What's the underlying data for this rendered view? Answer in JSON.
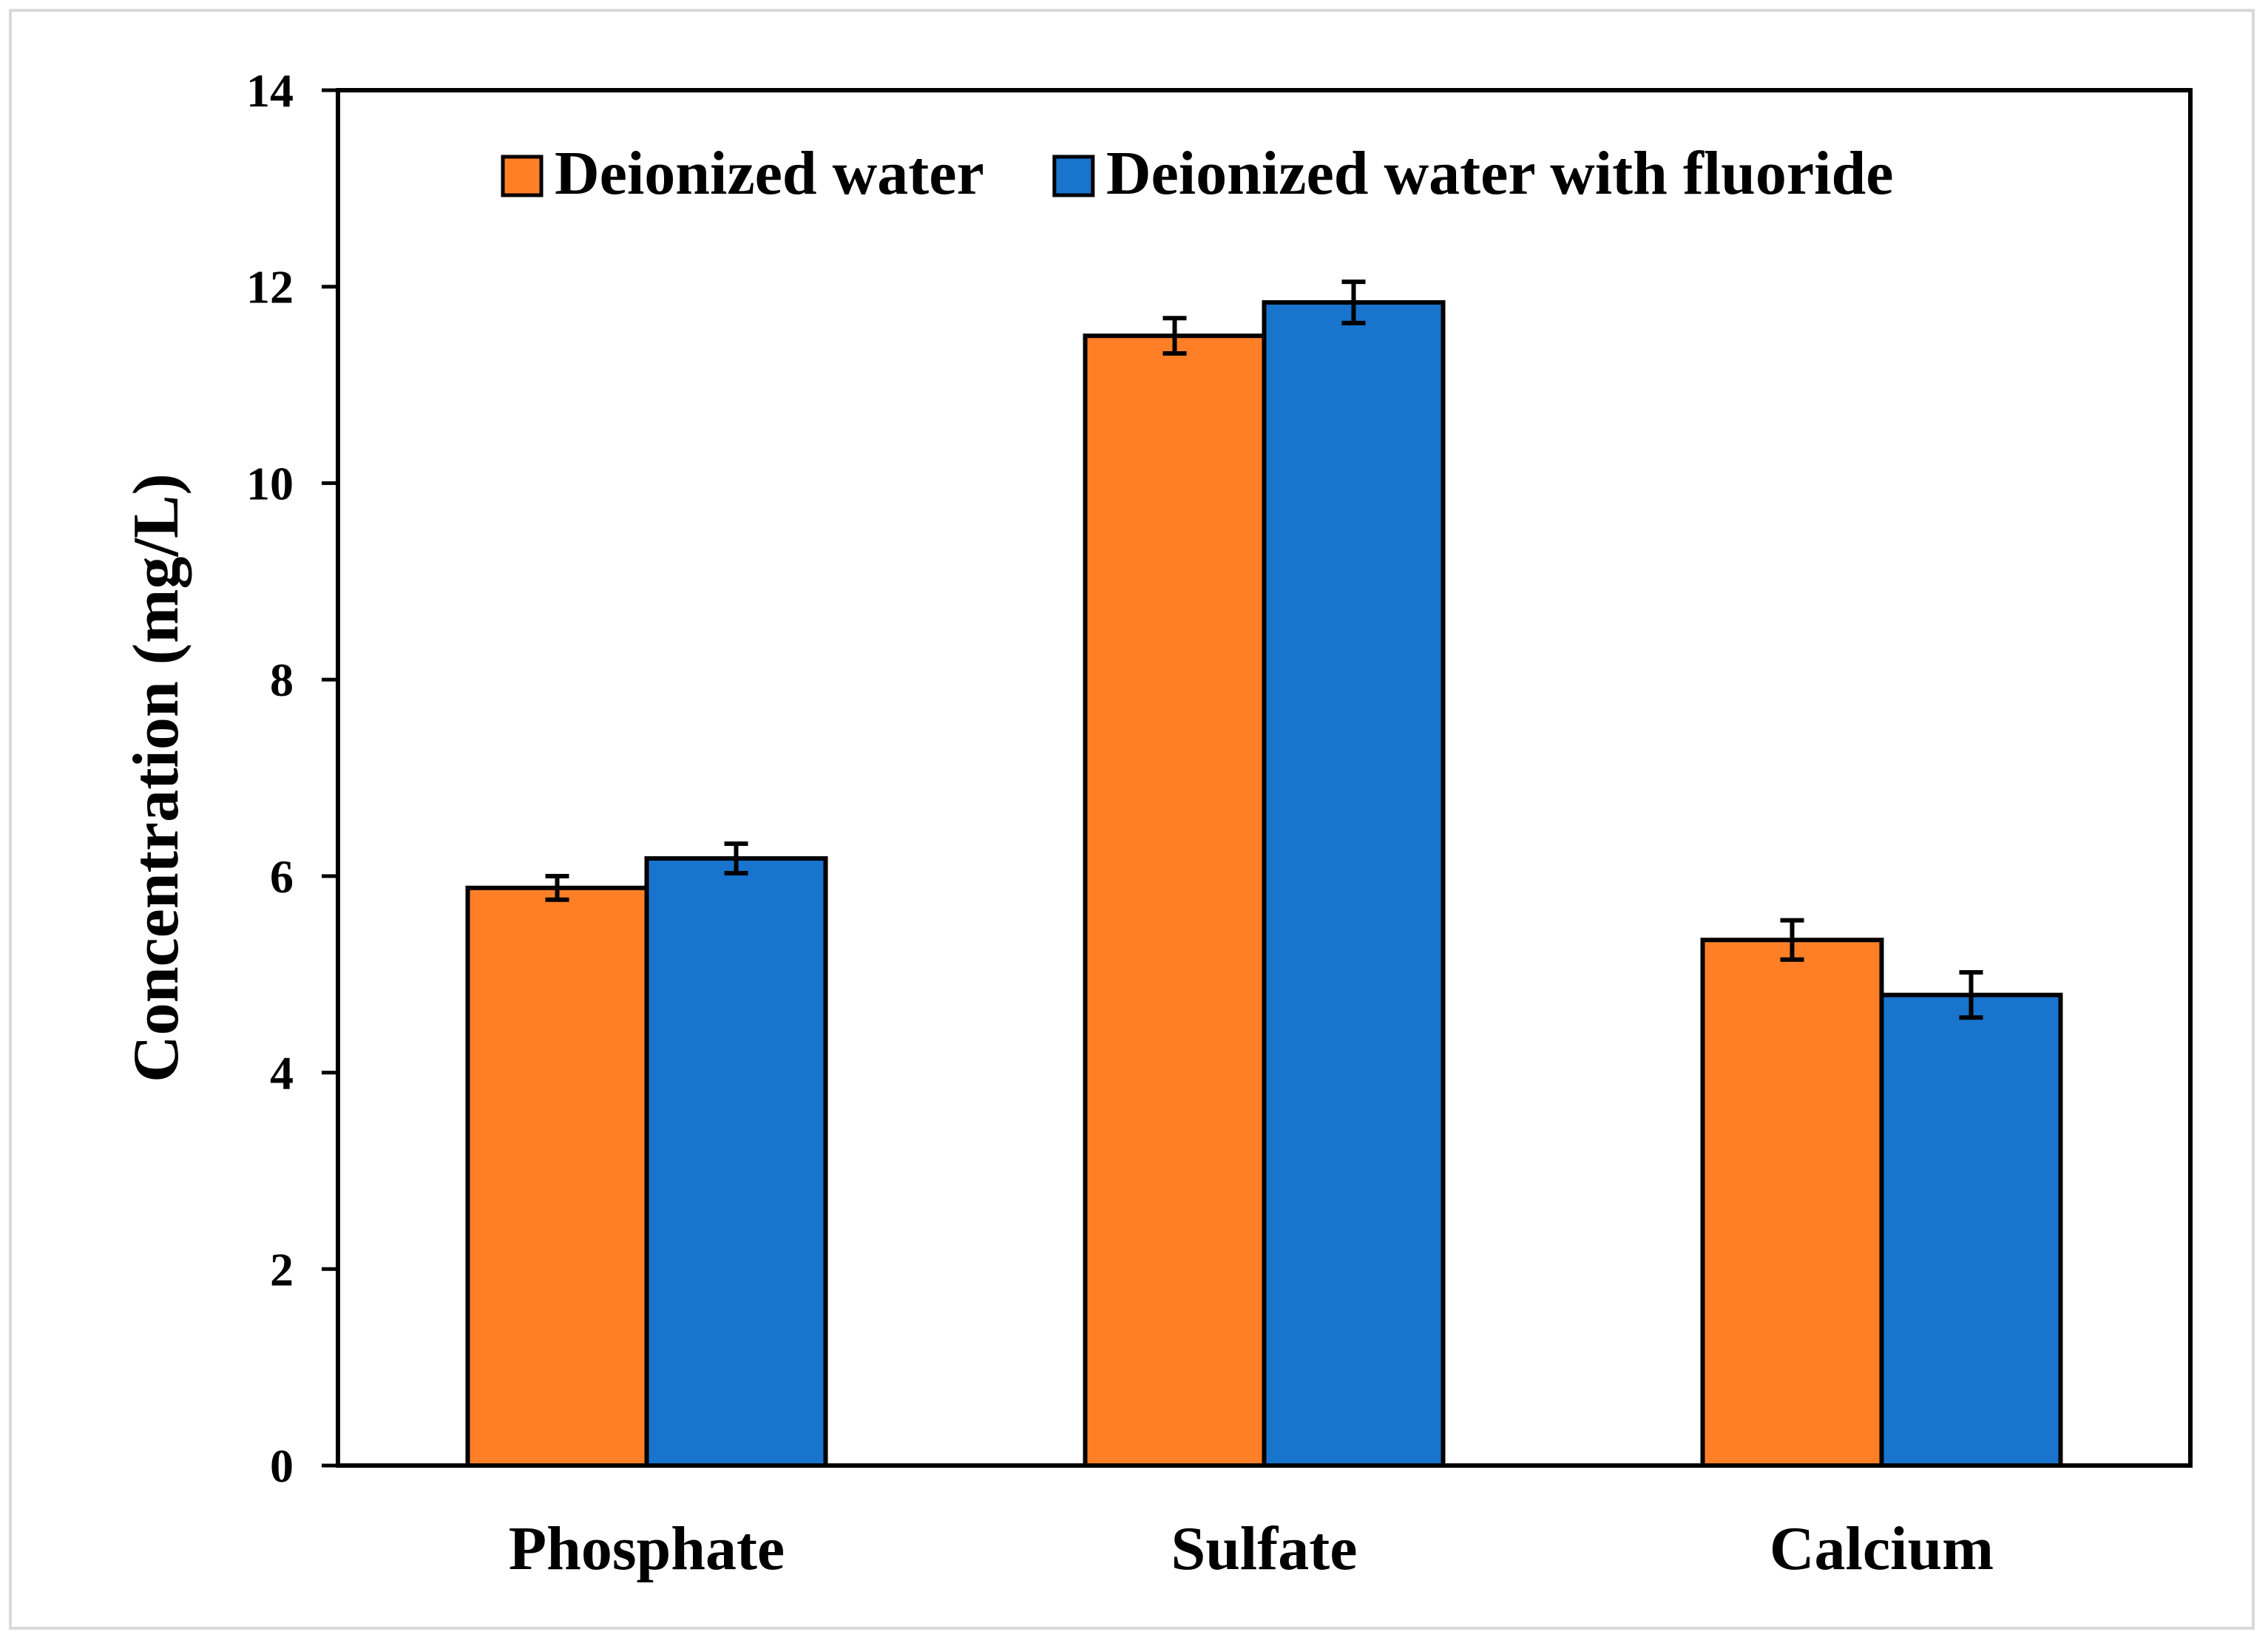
{
  "chart_data": {
    "type": "bar",
    "title": "",
    "xlabel": "",
    "ylabel": "Concentration (mg/L)",
    "ylim": [
      0,
      14
    ],
    "yticks": [
      0,
      2,
      4,
      6,
      8,
      10,
      12,
      14
    ],
    "grid": false,
    "legend_position": "top",
    "categories": [
      "Phosphate",
      "Sulfate",
      "Calcium"
    ],
    "series": [
      {
        "name": "Deionized water",
        "color": "#ff7f27",
        "values": [
          5.88,
          11.5,
          5.35
        ],
        "errors": [
          0.12,
          0.18,
          0.2
        ]
      },
      {
        "name": "Deionized water with fluoride",
        "color": "#1874cd",
        "values": [
          6.18,
          11.84,
          4.79
        ],
        "errors": [
          0.15,
          0.21,
          0.23
        ]
      }
    ]
  }
}
